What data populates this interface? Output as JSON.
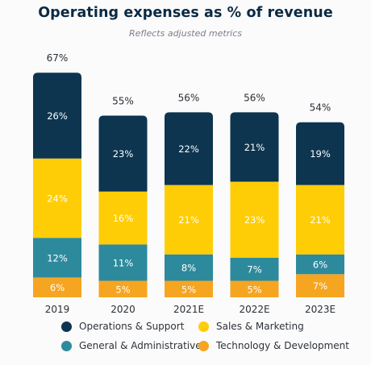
{
  "chart_data": {
    "type": "bar",
    "stacked": true,
    "title": "Operating expenses as % of revenue",
    "subtitle": "Reflects adjusted metrics",
    "categories": [
      "2019",
      "2020",
      "2021E",
      "2022E",
      "2023E"
    ],
    "totals": [
      67,
      55,
      56,
      56,
      54
    ],
    "series": [
      {
        "name": "Technology & Development",
        "values": [
          6,
          5,
          5,
          5,
          7
        ],
        "color": "#f6a521"
      },
      {
        "name": "General & Administrative",
        "values": [
          12,
          11,
          8,
          7,
          6
        ],
        "color": "#2d8a9c"
      },
      {
        "name": "Sales & Marketing",
        "values": [
          24,
          16,
          21,
          23,
          21
        ],
        "color": "#ffcd05"
      },
      {
        "name": "Operations & Support",
        "values": [
          26,
          23,
          22,
          21,
          19
        ],
        "color": "#0d3550"
      }
    ],
    "value_suffix": "%",
    "ylim": [
      0,
      67
    ],
    "legend": [
      {
        "label": "Operations & Support",
        "color": "#0d3550"
      },
      {
        "label": "Sales & Marketing",
        "color": "#ffcd05"
      },
      {
        "label": "General & Administrative",
        "color": "#2d8a9c"
      },
      {
        "label": "Technology & Development",
        "color": "#f6a521"
      }
    ],
    "legend_position": "bottom"
  }
}
